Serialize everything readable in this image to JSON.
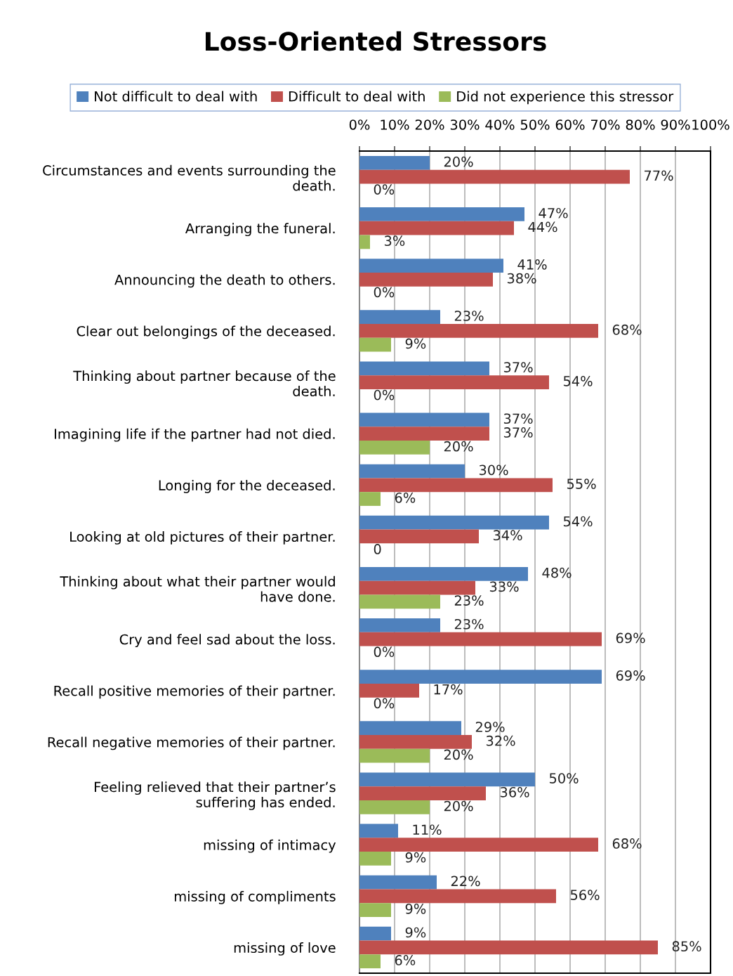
{
  "chart_data": {
    "type": "bar",
    "orientation": "horizontal",
    "title": "Loss-Oriented Stressors",
    "categories": [
      "Circumstances and events surrounding the\ndeath.",
      "Arranging the funeral.",
      "Announcing the death to others.",
      "Clear out belongings of the deceased.",
      "Thinking about partner because of the\ndeath.",
      "Imagining life if the partner had not died.",
      "Longing for the deceased.",
      "Looking at old pictures of their partner.",
      "Thinking about what their partner would\nhave done.",
      "Cry and feel sad about the loss.",
      "Recall positive memories of their partner.",
      "Recall negative memories of their partner.",
      "Feeling relieved that their partner’s\nsuffering has ended.",
      "missing of intimacy",
      "missing of compliments",
      "missing of love"
    ],
    "series": [
      {
        "name": "Not difficult to deal with",
        "color": "#4f81bd",
        "values": [
          20,
          47,
          41,
          23,
          37,
          37,
          30,
          54,
          48,
          23,
          69,
          29,
          50,
          11,
          22,
          9
        ],
        "value_labels": [
          "20%",
          "47%",
          "41%",
          "23%",
          "37%",
          "37%",
          "30%",
          "54%",
          "48%",
          "23%",
          "69%",
          "29%",
          "50%",
          "11%",
          "22%",
          "9%"
        ]
      },
      {
        "name": "Difficult to deal with",
        "color": "#c0504d",
        "values": [
          77,
          44,
          38,
          68,
          54,
          37,
          55,
          34,
          33,
          69,
          17,
          32,
          36,
          68,
          56,
          85
        ],
        "value_labels": [
          "77%",
          "44%",
          "38%",
          "68%",
          "54%",
          "37%",
          "55%",
          "34%",
          "33%",
          "69%",
          "17%",
          "32%",
          "36%",
          "68%",
          "56%",
          "85%"
        ]
      },
      {
        "name": "Did not experience this stressor",
        "color": "#9bbb59",
        "values": [
          0,
          3,
          0,
          9,
          0,
          20,
          6,
          0,
          23,
          0,
          0,
          20,
          20,
          9,
          9,
          6
        ],
        "value_labels": [
          "0%",
          "3%",
          "0%",
          "9%",
          "0%",
          "20%",
          "6%",
          "0",
          "23%",
          "0%",
          "0%",
          "20%",
          "20%",
          "9%",
          "9%",
          "6%"
        ]
      }
    ],
    "xlim": [
      0,
      100
    ],
    "xticks": [
      {
        "value": 0,
        "label": "0%"
      },
      {
        "value": 10,
        "label": "10%"
      },
      {
        "value": 20,
        "label": "20%"
      },
      {
        "value": 30,
        "label": "30%"
      },
      {
        "value": 40,
        "label": "40%"
      },
      {
        "value": 50,
        "label": "50%"
      },
      {
        "value": 60,
        "label": "60%"
      },
      {
        "value": 70,
        "label": "70%"
      },
      {
        "value": 80,
        "label": "80%"
      },
      {
        "value": 90,
        "label": "90%"
      },
      {
        "value": 100,
        "label": "100%"
      }
    ],
    "grid": "x",
    "legend": "top"
  }
}
